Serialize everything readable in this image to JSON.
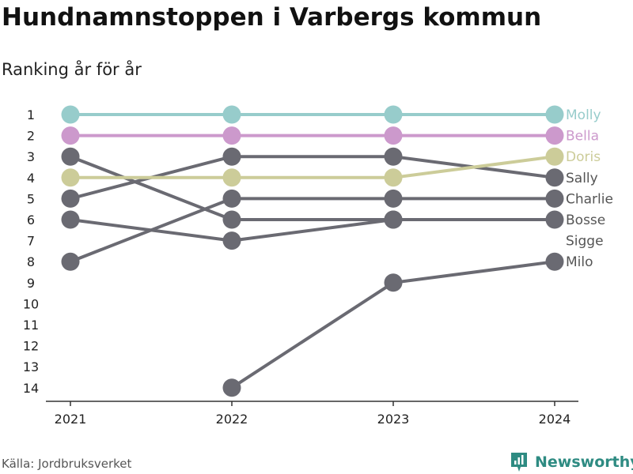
{
  "title": "Hundnamnstoppen i Varbergs kommun",
  "subtitle": "Ranking år för år",
  "source": "Källa: Jordbruksverket",
  "brand": "Newsworthy",
  "colors": {
    "highlight_molly": "#97cccb",
    "highlight_bella": "#cc99cc",
    "highlight_doris": "#cccc99",
    "default_line": "#6a6a72",
    "axis": "#333333",
    "brand": "#2e8b82"
  },
  "chart_data": {
    "type": "line",
    "subtype": "bump",
    "x": [
      "2021",
      "2022",
      "2023",
      "2024"
    ],
    "y_ticks": [
      "1",
      "2",
      "3",
      "4",
      "5",
      "6",
      "7",
      "8",
      "9",
      "10",
      "11",
      "12",
      "13",
      "14"
    ],
    "ylim": [
      1,
      14
    ],
    "y_reversed": true,
    "grid": false,
    "series": [
      {
        "name": "Molly",
        "values": [
          1,
          1,
          1,
          1
        ],
        "highlight": "molly"
      },
      {
        "name": "Bella",
        "values": [
          2,
          2,
          2,
          2
        ],
        "highlight": "bella"
      },
      {
        "name": "Doris",
        "values": [
          4,
          4,
          4,
          3
        ],
        "highlight": "doris"
      },
      {
        "name": "Sally",
        "values": [
          5,
          3,
          3,
          4
        ],
        "highlight": null
      },
      {
        "name": "Charlie",
        "values": [
          8,
          5,
          5,
          5
        ],
        "highlight": null
      },
      {
        "name": "Bosse",
        "values": [
          3,
          6,
          6,
          6
        ],
        "highlight": null
      },
      {
        "name": "Sigge",
        "values": [
          6,
          7,
          6,
          null
        ],
        "highlight": null
      },
      {
        "name": "Milo",
        "values": [
          null,
          14,
          9,
          8
        ],
        "highlight": null
      }
    ]
  }
}
